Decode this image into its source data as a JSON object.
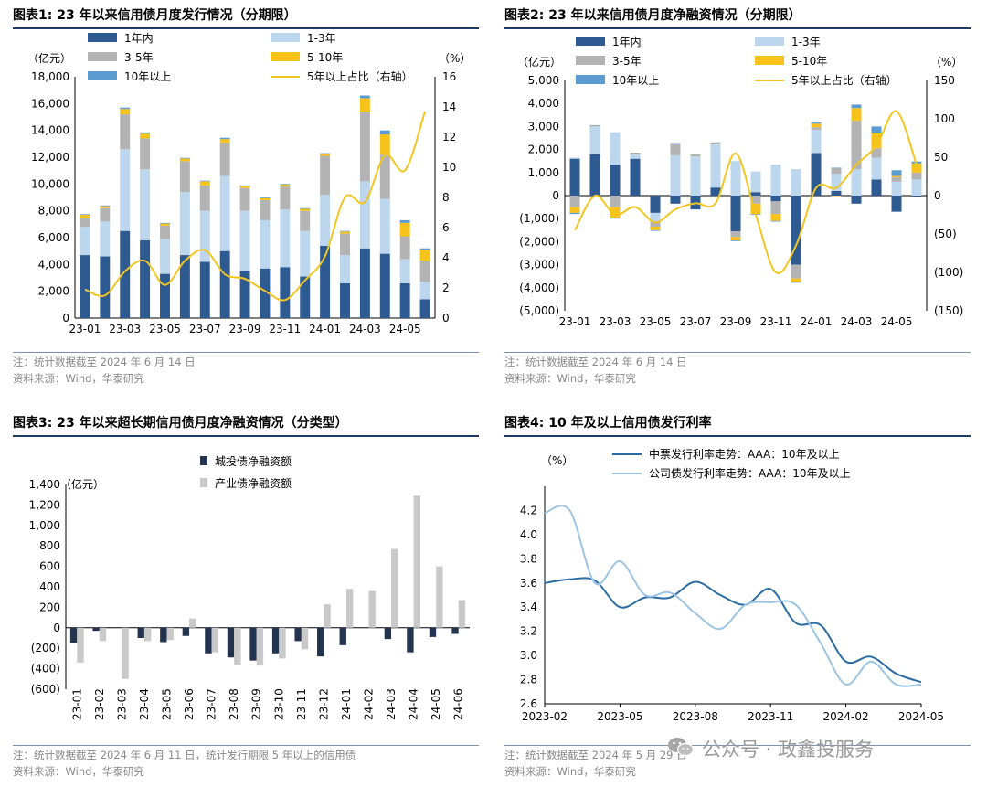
{
  "colors": {
    "bucket1": "#2e5a92",
    "bucket2": "#bcd6ee",
    "bucket3": "#b3b3b3",
    "bucket4": "#f7c21a",
    "bucket5": "#5b9bd0",
    "ratio": "#f2c61f",
    "city": "#233450",
    "industry": "#c9c9c9",
    "mtn": "#2b6ca3",
    "corp": "#9cc5e4"
  },
  "panels": {
    "p1": {
      "title": "图表1:  23 年以来信用债月度发行情况（分期限）",
      "note1": "注：统计数据截至 2024 年 6 月 14 日",
      "note2": "资料来源：Wind，华泰研究"
    },
    "p2": {
      "title": "图表2:  23 年以来信用债月度净融资情况（分期限）",
      "note1": "注：统计数据截至 2024 年 6 月 14 日",
      "note2": "资料来源：Wind，华泰研究"
    },
    "p3": {
      "title": "图表3:  23 年以来超长期信用债月度净融资情况（分类型）",
      "note1": "注：统计数据截至 2024 年 6 月 11 日，统计发行期限 5 年以上的信用债",
      "note2": "资料来源：Wind，华泰研究"
    },
    "p4": {
      "title": "图表4:  10 年及以上信用债发行利率",
      "note1": "注：统计数据截至 2024 年 5 月 29 日",
      "note2": "资料来源：Wind，华泰研究"
    }
  },
  "watermark": "公众号 · 政鑫投服务",
  "chart_data": [
    {
      "type": "bar",
      "stacked": true,
      "title": "23 年以来信用债月度发行情况（分期限）",
      "ylabel": "（亿元）",
      "y2label": "（%）",
      "ylim": [
        0,
        18000
      ],
      "yticks": [
        0,
        2000,
        4000,
        6000,
        8000,
        10000,
        12000,
        14000,
        16000,
        18000
      ],
      "y2lim": [
        0,
        16
      ],
      "y2ticks": [
        0,
        2,
        4,
        6,
        8,
        10,
        12,
        14,
        16
      ],
      "categories": [
        "23-01",
        "23-02",
        "23-03",
        "23-04",
        "23-05",
        "23-06",
        "23-07",
        "23-08",
        "23-09",
        "23-10",
        "23-11",
        "23-12",
        "24-01",
        "24-02",
        "24-03",
        "24-04",
        "24-05",
        "24-06"
      ],
      "xticklabels": [
        "23-01",
        "23-03",
        "23-05",
        "23-07",
        "23-09",
        "23-11",
        "24-01",
        "24-03",
        "24-05"
      ],
      "series": [
        {
          "name": "1年内",
          "values": [
            4700,
            4600,
            6500,
            5800,
            3300,
            4700,
            4200,
            5000,
            3500,
            3700,
            3800,
            3100,
            5400,
            2600,
            5200,
            4800,
            2600,
            1400
          ]
        },
        {
          "name": "1-3年",
          "values": [
            2100,
            2600,
            6100,
            5300,
            2600,
            4700,
            3800,
            5600,
            4500,
            3600,
            4300,
            3400,
            3800,
            2100,
            5000,
            4100,
            1800,
            1300
          ]
        },
        {
          "name": "3-5年",
          "values": [
            700,
            1000,
            2600,
            2300,
            1000,
            2300,
            1900,
            2500,
            1700,
            1500,
            1700,
            1500,
            2900,
            1600,
            5200,
            3300,
            1700,
            1600
          ]
        },
        {
          "name": "5-10年",
          "values": [
            200,
            150,
            400,
            350,
            150,
            200,
            300,
            250,
            150,
            150,
            150,
            150,
            150,
            150,
            1000,
            1500,
            1000,
            800
          ]
        },
        {
          "name": "10年以上",
          "values": [
            50,
            50,
            100,
            100,
            50,
            50,
            50,
            100,
            50,
            50,
            50,
            50,
            50,
            50,
            200,
            300,
            200,
            100
          ]
        }
      ],
      "line": {
        "name": "5年以上占比（右轴）",
        "axis": "right",
        "values": [
          1.9,
          1.5,
          3.1,
          3.8,
          2.2,
          3.8,
          4.5,
          2.9,
          2.6,
          1.8,
          1.2,
          2.5,
          4.1,
          8.0,
          7.7,
          10.8,
          9.8,
          13.7
        ]
      }
    },
    {
      "type": "bar",
      "stacked": true,
      "title": "23 年以来信用债月度净融资情况（分期限）",
      "ylabel": "（亿元）",
      "y2label": "（%）",
      "ylim": [
        -5000,
        5000
      ],
      "yticks": [
        -5000,
        -4000,
        -3000,
        -2000,
        -1000,
        0,
        1000,
        2000,
        3000,
        4000,
        5000
      ],
      "yticklabels": [
        "(5,000)",
        "(4,000)",
        "(3,000)",
        "(2,000)",
        "(1,000)",
        "0",
        "1,000",
        "2,000",
        "3,000",
        "4,000",
        "5,000"
      ],
      "y2lim": [
        -150,
        150
      ],
      "y2ticks": [
        -150,
        -100,
        -50,
        0,
        50,
        100,
        150
      ],
      "y2ticklabels": [
        "(150)",
        "(100)",
        "(50)",
        "0",
        "50",
        "100",
        "150"
      ],
      "categories": [
        "23-01",
        "23-02",
        "23-03",
        "23-04",
        "23-05",
        "23-06",
        "23-07",
        "23-08",
        "23-09",
        "23-10",
        "23-11",
        "23-12",
        "24-01",
        "24-02",
        "24-03",
        "24-04",
        "24-05",
        "24-06"
      ],
      "xticklabels": [
        "23-01",
        "23-03",
        "23-05",
        "23-07",
        "23-09",
        "23-11",
        "24-01",
        "24-03",
        "24-05"
      ],
      "series": [
        {
          "name": "1年内",
          "values": [
            1600,
            1800,
            1350,
            1600,
            -750,
            -350,
            -600,
            350,
            -1550,
            150,
            -250,
            -3000,
            1850,
            200,
            -350,
            700,
            -700,
            -50
          ]
        },
        {
          "name": "1-3年",
          "values": [
            50,
            1200,
            1400,
            200,
            -350,
            1750,
            1700,
            1900,
            1500,
            900,
            1350,
            1150,
            1000,
            750,
            1150,
            950,
            600,
            700
          ]
        },
        {
          "name": "3-5年",
          "values": [
            -500,
            40,
            -500,
            40,
            -250,
            500,
            70,
            40,
            -250,
            -350,
            -550,
            -600,
            120,
            250,
            2100,
            400,
            200,
            300
          ]
        },
        {
          "name": "5-10年",
          "values": [
            -250,
            10,
            -450,
            10,
            -150,
            20,
            20,
            10,
            -150,
            -450,
            -300,
            -150,
            150,
            -20,
            550,
            650,
            50,
            400
          ]
        },
        {
          "name": "10年以上",
          "values": [
            -50,
            10,
            -50,
            10,
            -30,
            10,
            10,
            10,
            -30,
            -30,
            -30,
            -30,
            50,
            10,
            150,
            300,
            250,
            80
          ]
        }
      ],
      "line": {
        "name": "5年以上占比（右轴）",
        "axis": "right",
        "values": [
          -45,
          0,
          -25,
          -15,
          -35,
          -18,
          -10,
          -10,
          55,
          -25,
          -100,
          -65,
          10,
          10,
          40,
          65,
          110,
          40
        ]
      }
    },
    {
      "type": "bar",
      "stacked": false,
      "title": "23 年以来超长期信用债月度净融资情况（分类型）",
      "ylabel": "（亿元）",
      "ylim": [
        -600,
        1400
      ],
      "yticks": [
        -600,
        -400,
        -200,
        0,
        200,
        400,
        600,
        800,
        1000,
        1200,
        1400
      ],
      "yticklabels": [
        "(600)",
        "(400)",
        "(200)",
        "0",
        "200",
        "400",
        "600",
        "800",
        "1,000",
        "1,200",
        "1,400"
      ],
      "categories": [
        "23-01",
        "23-02",
        "23-03",
        "23-04",
        "23-05",
        "23-06",
        "23-07",
        "23-08",
        "23-09",
        "23-10",
        "23-11",
        "23-12",
        "24-01",
        "24-02",
        "24-03",
        "24-04",
        "24-05",
        "24-06"
      ],
      "series": [
        {
          "name": "城投债净融资额",
          "values": [
            -150,
            -30,
            0,
            -100,
            -140,
            -80,
            -250,
            -290,
            -320,
            -250,
            -130,
            -280,
            -170,
            0,
            -110,
            -240,
            -90,
            -60
          ]
        },
        {
          "name": "产业债净融资额",
          "values": [
            -340,
            -130,
            -500,
            -130,
            -120,
            90,
            -240,
            -360,
            -370,
            -300,
            -210,
            230,
            380,
            360,
            770,
            1290,
            600,
            270
          ]
        }
      ]
    },
    {
      "type": "line",
      "title": "10 年及以上信用债发行利率",
      "ylabel": "（%）",
      "ylim": [
        2.6,
        4.4
      ],
      "yticks": [
        2.6,
        2.8,
        3.0,
        3.2,
        3.4,
        3.6,
        3.8,
        4.0,
        4.2,
        4.4
      ],
      "yticklabels": [
        "2.6",
        "2.8",
        "3.0",
        "3.2",
        "3.4",
        "3.6",
        "3.8",
        "4.0",
        "4.2",
        "4.4"
      ],
      "xlim": [
        0,
        15
      ],
      "xticks": [
        0,
        3,
        6,
        9,
        12,
        15
      ],
      "xticklabels": [
        "2023-02",
        "2023-05",
        "2023-08",
        "2023-11",
        "2024-02",
        "2024-05"
      ],
      "series": [
        {
          "name": "中票发行利率走势：AAA：10年及以上",
          "x": [
            0,
            1,
            2,
            3,
            4,
            5,
            6,
            7,
            8,
            9,
            10,
            11,
            12,
            13,
            14,
            15
          ],
          "values": [
            3.6,
            3.63,
            3.62,
            3.4,
            3.48,
            3.48,
            3.61,
            3.5,
            3.42,
            3.55,
            3.27,
            3.25,
            2.95,
            2.99,
            2.85,
            2.78
          ]
        },
        {
          "name": "公司债发行利率走势：AAA：10年及以上",
          "x": [
            0,
            1,
            2,
            3,
            4,
            5,
            6,
            7,
            8,
            9,
            10,
            11,
            12,
            13,
            14,
            15
          ],
          "values": [
            4.18,
            4.2,
            3.6,
            3.78,
            3.5,
            3.52,
            3.35,
            3.22,
            3.42,
            3.44,
            3.42,
            3.1,
            2.76,
            2.95,
            2.76,
            2.76
          ]
        }
      ]
    }
  ]
}
